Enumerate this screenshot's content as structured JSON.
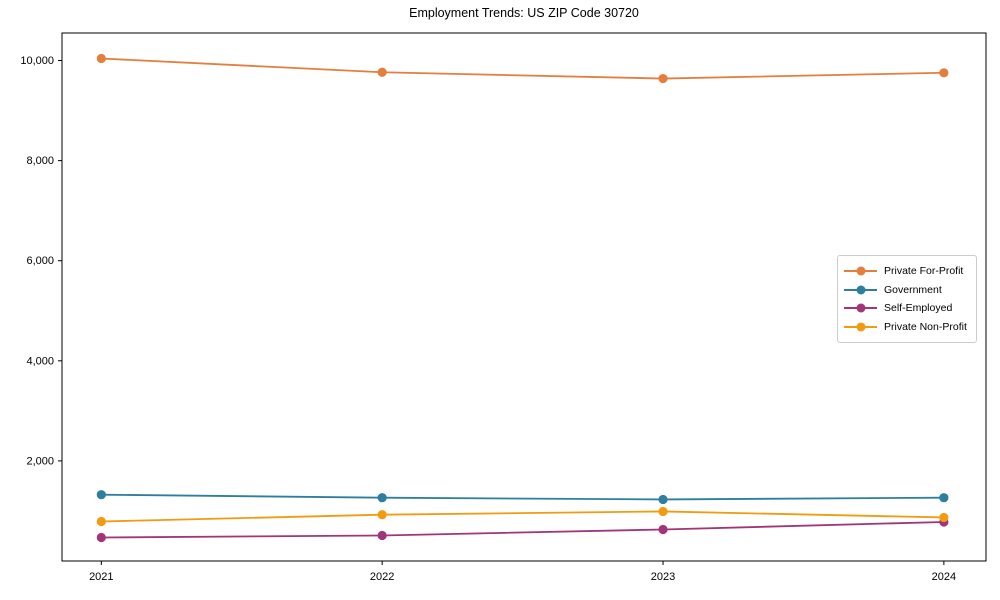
{
  "chart_data": {
    "type": "line",
    "title": "Employment Trends: US ZIP Code 30720",
    "x": [
      2021,
      2022,
      2023,
      2024
    ],
    "xtick_labels": [
      "2021",
      "2022",
      "2023",
      "2024"
    ],
    "series": [
      {
        "name": "Private For-Profit",
        "color": "#E57E3D",
        "values": [
          10040,
          9765,
          9640,
          9755
        ]
      },
      {
        "name": "Government",
        "color": "#2E7F9E",
        "values": [
          1325,
          1265,
          1230,
          1265
        ]
      },
      {
        "name": "Self-Employed",
        "color": "#A23579",
        "values": [
          470,
          510,
          630,
          780
        ]
      },
      {
        "name": "Private Non-Profit",
        "color": "#F29B11",
        "values": [
          790,
          925,
          990,
          870
        ]
      }
    ],
    "yticks": [
      2000,
      4000,
      6000,
      8000,
      10000
    ],
    "ytick_labels": [
      "2,000",
      "4,000",
      "6,000",
      "8,000",
      "10,000"
    ],
    "xlim": [
      2020.86,
      2024.15
    ],
    "ylim": [
      0,
      10550
    ],
    "xlabel": "",
    "ylabel": "",
    "grid": false,
    "legend_position": "center right",
    "axes_color": "#000000",
    "background": "#ffffff"
  }
}
